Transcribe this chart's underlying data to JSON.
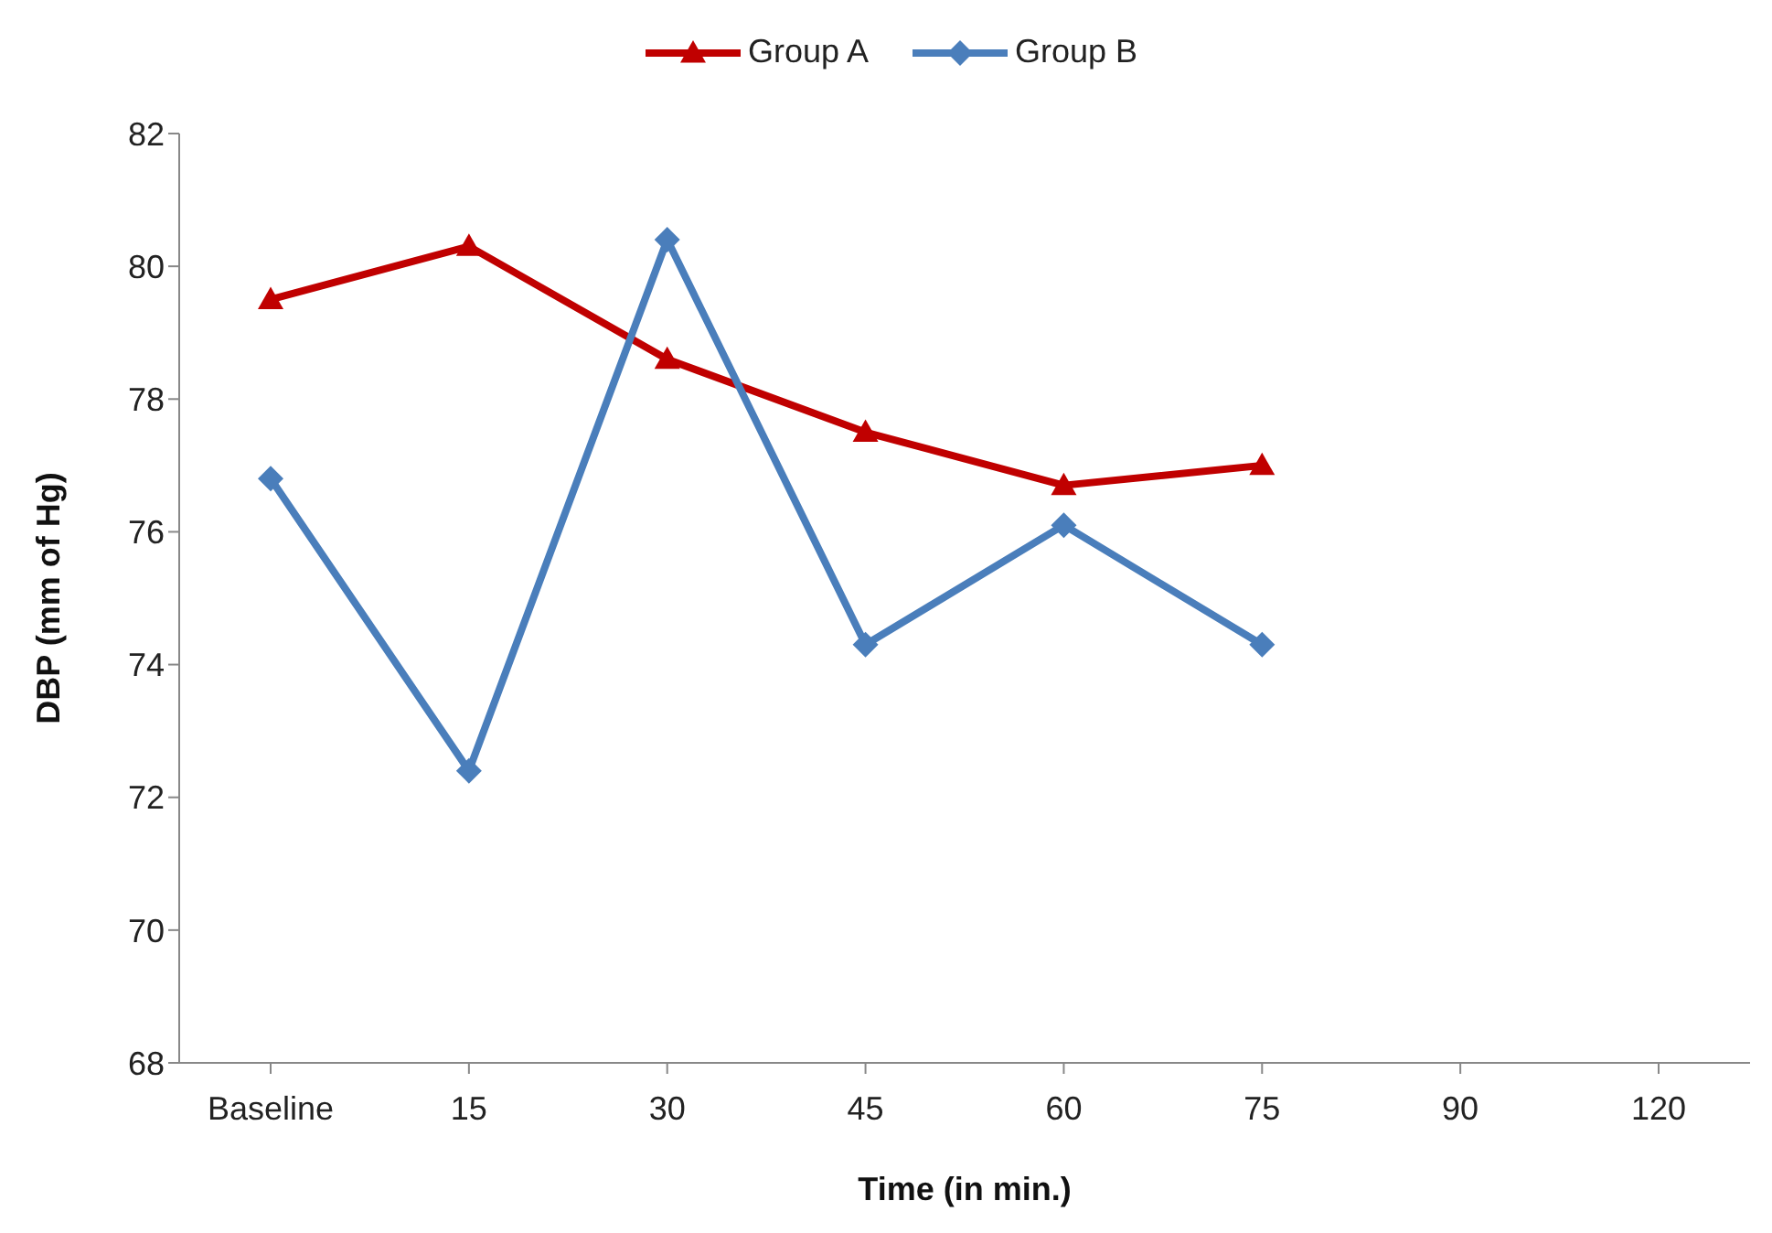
{
  "chart_data": {
    "type": "line",
    "xlabel": "Time (in min.)",
    "ylabel": "DBP (mm of Hg)",
    "categories": [
      "Baseline",
      "15",
      "30",
      "45",
      "60",
      "75",
      "90",
      "120"
    ],
    "series": [
      {
        "name": "Group A",
        "color": "#c00000",
        "marker": "triangle",
        "values": [
          79.5,
          80.3,
          78.6,
          77.5,
          76.7,
          77.0,
          null,
          null
        ]
      },
      {
        "name": "Group B",
        "color": "#4a7ebb",
        "marker": "diamond",
        "values": [
          76.8,
          72.4,
          80.4,
          74.3,
          76.1,
          74.3,
          null,
          null
        ]
      }
    ],
    "ylim": [
      68,
      82
    ],
    "yticks": [
      68,
      70,
      72,
      74,
      76,
      78,
      80,
      82
    ],
    "grid": false,
    "legend": "top"
  }
}
